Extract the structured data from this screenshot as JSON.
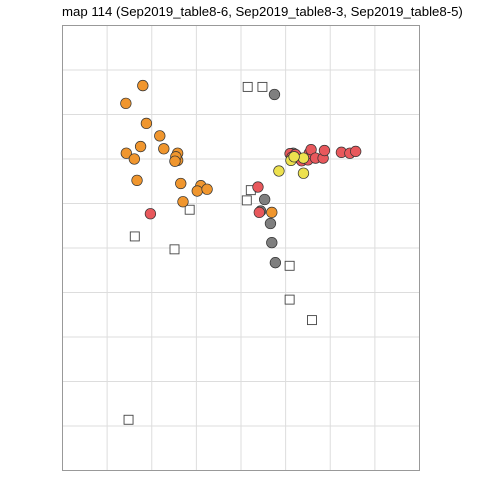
{
  "chart_data": {
    "type": "scatter",
    "title": "map 114 (Sep2019_table8-6, Sep2019_table8-3, Sep2019_table8-5)",
    "xlabel": "",
    "ylabel": "",
    "xlim": [
      0,
      800
    ],
    "ylim": [
      0,
      1000
    ],
    "grid": true,
    "axis_ticks_labeled": false,
    "legend": "none",
    "colors": {
      "orange": "#f0962e",
      "red": "#e8585c",
      "gray": "#7f7f7f",
      "yellow": "#ede14e",
      "open": "#ffffff",
      "grid": "#dddddd",
      "frame": "#999999"
    },
    "series": [
      {
        "color": "orange",
        "marker": "circle",
        "points": [
          [
            180,
            865
          ],
          [
            142,
            825
          ],
          [
            188,
            780
          ],
          [
            218,
            752
          ],
          [
            143,
            713
          ],
          [
            227,
            723
          ],
          [
            175,
            728
          ],
          [
            258,
            713
          ],
          [
            258,
            697
          ],
          [
            254,
            705
          ],
          [
            161,
            700
          ],
          [
            252,
            695
          ],
          [
            167,
            652
          ],
          [
            265,
            645
          ],
          [
            310,
            640
          ],
          [
            302,
            628
          ],
          [
            324,
            632
          ],
          [
            270,
            604
          ],
          [
            469,
            580
          ]
        ]
      },
      {
        "color": "red",
        "marker": "circle",
        "points": [
          [
            197,
            577
          ],
          [
            441,
            580
          ],
          [
            438,
            637
          ],
          [
            510,
            712
          ],
          [
            514,
            704
          ],
          [
            527,
            704
          ],
          [
            522,
            710
          ],
          [
            536,
            696
          ],
          [
            550,
            698
          ],
          [
            553,
            713
          ],
          [
            557,
            721
          ],
          [
            567,
            702
          ],
          [
            584,
            702
          ],
          [
            587,
            719
          ],
          [
            625,
            715
          ],
          [
            644,
            713
          ],
          [
            657,
            717
          ]
        ]
      },
      {
        "color": "gray",
        "marker": "circle",
        "points": [
          [
            475,
            845
          ],
          [
            517,
            713
          ],
          [
            528,
            703
          ],
          [
            444,
            583
          ],
          [
            453,
            609
          ],
          [
            466,
            555
          ],
          [
            469,
            512
          ],
          [
            477,
            467
          ]
        ]
      },
      {
        "color": "yellow",
        "marker": "circle",
        "points": [
          [
            540,
            702
          ],
          [
            485,
            673
          ],
          [
            512,
            697
          ],
          [
            540,
            668
          ],
          [
            519,
            705
          ]
        ]
      },
      {
        "color": "open",
        "marker": "square",
        "points": [
          [
            415,
            862
          ],
          [
            448,
            862
          ],
          [
            285,
            586
          ],
          [
            162,
            526
          ],
          [
            422,
            630
          ],
          [
            413,
            607
          ],
          [
            251,
            497
          ],
          [
            509,
            460
          ],
          [
            509,
            384
          ],
          [
            559,
            338
          ],
          [
            148,
            114
          ]
        ]
      }
    ]
  }
}
